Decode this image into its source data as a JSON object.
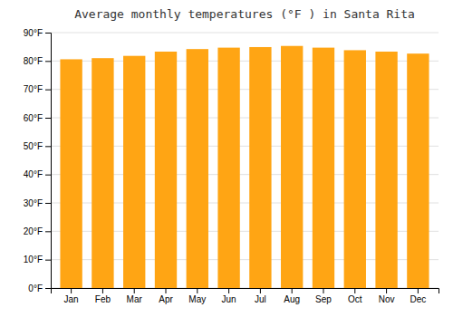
{
  "chart_data": {
    "type": "bar",
    "title": "Average monthly temperatures (°F ) in Santa Rita",
    "categories": [
      "Jan",
      "Feb",
      "Mar",
      "Apr",
      "May",
      "Jun",
      "Jul",
      "Aug",
      "Sep",
      "Oct",
      "Nov",
      "Dec"
    ],
    "values": [
      80.6,
      81.0,
      81.8,
      83.3,
      84.2,
      84.7,
      84.9,
      85.3,
      84.7,
      83.8,
      83.3,
      82.6
    ],
    "color": "#FFA514",
    "ylim": [
      0,
      90
    ],
    "yticks": [
      {
        "value": 0,
        "label": "0°F"
      },
      {
        "value": 10,
        "label": "10°F"
      },
      {
        "value": 20,
        "label": "20°F"
      },
      {
        "value": 30,
        "label": "30°F"
      },
      {
        "value": 40,
        "label": "40°F"
      },
      {
        "value": 50,
        "label": "50°F"
      },
      {
        "value": 60,
        "label": "60°F"
      },
      {
        "value": 70,
        "label": "70°F"
      },
      {
        "value": 80,
        "label": "80°F"
      },
      {
        "value": 90,
        "label": "90°F"
      }
    ],
    "grid": true
  }
}
